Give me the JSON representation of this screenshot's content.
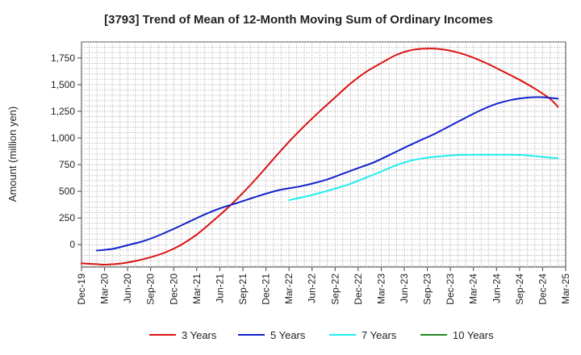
{
  "chart_data": {
    "type": "line",
    "title": "[3793]  Trend of Mean of 12-Month Moving Sum of Ordinary Incomes",
    "xlabel": "",
    "ylabel": "Amount (million yen)",
    "ylim": [
      -210,
      1900
    ],
    "y_ticks": [
      0,
      250,
      500,
      750,
      1000,
      1250,
      1500,
      1750
    ],
    "y_tick_labels": [
      "0",
      "250",
      "500",
      "750",
      "1,000",
      "1,250",
      "1,500",
      "1,750"
    ],
    "x_tick_labels": [
      "Dec-19",
      "Mar-20",
      "Jun-20",
      "Sep-20",
      "Dec-20",
      "Mar-21",
      "Jun-21",
      "Sep-21",
      "Dec-21",
      "Mar-22",
      "Jun-22",
      "Sep-22",
      "Dec-22",
      "Mar-23",
      "Jun-23",
      "Sep-23",
      "Dec-23",
      "Mar-24",
      "Jun-24",
      "Sep-24",
      "Dec-24",
      "Mar-25"
    ],
    "x_range_months": [
      0,
      63
    ],
    "grid": true,
    "legend_position": "bottom",
    "series": [
      {
        "name": "3 Years",
        "color": "#dd1111",
        "points": [
          [
            0,
            -175
          ],
          [
            2,
            -183
          ],
          [
            3,
            -187
          ],
          [
            5,
            -178
          ],
          [
            7,
            -153
          ],
          [
            9,
            -118
          ],
          [
            11,
            -70
          ],
          [
            13,
            0
          ],
          [
            15,
            95
          ],
          [
            17,
            215
          ],
          [
            19,
            343
          ],
          [
            21,
            485
          ],
          [
            23,
            640
          ],
          [
            25,
            805
          ],
          [
            27,
            965
          ],
          [
            29,
            1112
          ],
          [
            31,
            1250
          ],
          [
            33,
            1380
          ],
          [
            35,
            1510
          ],
          [
            37,
            1618
          ],
          [
            39,
            1702
          ],
          [
            41,
            1780
          ],
          [
            43,
            1825
          ],
          [
            45,
            1838
          ],
          [
            47,
            1830
          ],
          [
            49,
            1800
          ],
          [
            51,
            1752
          ],
          [
            53,
            1690
          ],
          [
            55,
            1618
          ],
          [
            57,
            1545
          ],
          [
            59,
            1462
          ],
          [
            61,
            1365
          ],
          [
            62,
            1290
          ]
        ]
      },
      {
        "name": "5 Years",
        "color": "#1122cc",
        "points": [
          [
            2,
            -55
          ],
          [
            4,
            -40
          ],
          [
            6,
            -5
          ],
          [
            8,
            32
          ],
          [
            10,
            85
          ],
          [
            12,
            148
          ],
          [
            14,
            215
          ],
          [
            16,
            282
          ],
          [
            18,
            340
          ],
          [
            20,
            385
          ],
          [
            22,
            432
          ],
          [
            24,
            478
          ],
          [
            26,
            516
          ],
          [
            28,
            540
          ],
          [
            30,
            572
          ],
          [
            32,
            612
          ],
          [
            34,
            665
          ],
          [
            36,
            718
          ],
          [
            38,
            770
          ],
          [
            40,
            838
          ],
          [
            42,
            908
          ],
          [
            44,
            975
          ],
          [
            46,
            1040
          ],
          [
            48,
            1115
          ],
          [
            50,
            1190
          ],
          [
            52,
            1262
          ],
          [
            54,
            1320
          ],
          [
            56,
            1358
          ],
          [
            58,
            1378
          ],
          [
            60,
            1382
          ],
          [
            62,
            1368
          ]
        ]
      },
      {
        "name": "7 Years",
        "color": "#22eeee",
        "points": [
          [
            27,
            418
          ],
          [
            29,
            448
          ],
          [
            31,
            485
          ],
          [
            33,
            525
          ],
          [
            35,
            570
          ],
          [
            37,
            628
          ],
          [
            39,
            685
          ],
          [
            41,
            745
          ],
          [
            43,
            790
          ],
          [
            45,
            815
          ],
          [
            47,
            830
          ],
          [
            49,
            840
          ],
          [
            51,
            843
          ],
          [
            53,
            843
          ],
          [
            55,
            843
          ],
          [
            57,
            841
          ],
          [
            59,
            830
          ],
          [
            61,
            815
          ],
          [
            62,
            810
          ]
        ]
      },
      {
        "name": "10 Years",
        "color": "#228822",
        "points": []
      }
    ]
  }
}
